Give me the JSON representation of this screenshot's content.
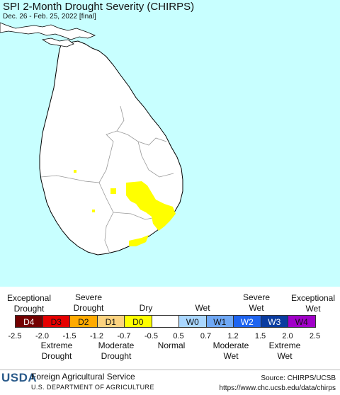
{
  "title": "SPI 2-Month Drought Severity (CHIRPS)",
  "subtitle": "Dec. 26 - Feb. 25, 2022 [final]",
  "colors": {
    "ocean": "#c8ffff",
    "land": "#ffffff",
    "border": "#000000",
    "district_lines": "#999999",
    "D0": "#ffff00"
  },
  "legend": {
    "top_labels": {
      "exceptional_drought": [
        "Exceptional",
        "Drought"
      ],
      "severe_drought": [
        "Severe",
        "Drought"
      ],
      "dry": "Dry",
      "wet": "Wet",
      "severe_wet": [
        "Severe",
        "Wet"
      ],
      "exceptional_wet": [
        "Exceptional",
        "Wet"
      ]
    },
    "categories": [
      {
        "code": "D4",
        "color": "#730000"
      },
      {
        "code": "D3",
        "color": "#e60000"
      },
      {
        "code": "D2",
        "color": "#ffaa00"
      },
      {
        "code": "D1",
        "color": "#fcd37f"
      },
      {
        "code": "D0",
        "color": "#ffff00"
      },
      {
        "code": "",
        "color": "#ffffff"
      },
      {
        "code": "W0",
        "color": "#aad7ff"
      },
      {
        "code": "W1",
        "color": "#6fa8f5"
      },
      {
        "code": "W2",
        "color": "#1e64f0"
      },
      {
        "code": "W3",
        "color": "#0a3ca0"
      },
      {
        "code": "W4",
        "color": "#a000c8"
      }
    ],
    "ticks": [
      "-2.5",
      "-2.0",
      "-1.5",
      "-1.2",
      "-0.7",
      "-0.5",
      "0.5",
      "0.7",
      "1.2",
      "1.5",
      "2.0",
      "2.5"
    ],
    "bottom_labels": {
      "extreme_drought": [
        "Extreme",
        "Drought"
      ],
      "moderate_drought": [
        "Moderate",
        "Drought"
      ],
      "normal": "Normal",
      "moderate_wet": [
        "Moderate",
        "Wet"
      ],
      "extreme_wet": [
        "Extreme",
        "Wet"
      ]
    }
  },
  "footer": {
    "logo": "USDA",
    "org": "Foreign Agricultural Service",
    "dept": "U.S. DEPARTMENT OF AGRICULTURE",
    "source": "Source: CHIRPS/UCSB",
    "url": "https://www.chc.ucsb.edu/data/chirps"
  }
}
